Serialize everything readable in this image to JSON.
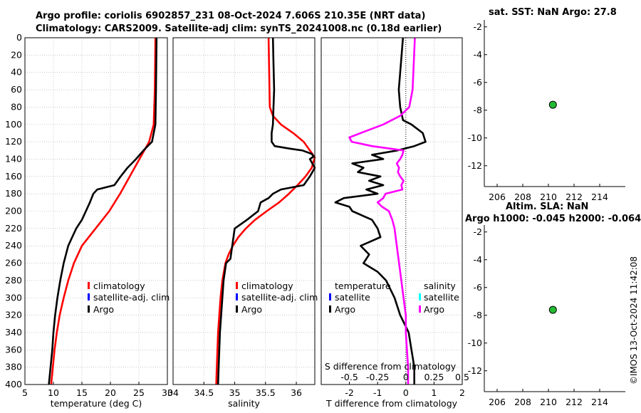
{
  "titles": {
    "line1": "Argo profile: coriolis 6902857_231 08-Oct-2024 7.606S 210.35E (NRT data)",
    "line2": "Climatology: CARS2009. Satellite-adj clim: synTS_20241008.nc (0.18d earlier)",
    "sst": "sat. SST: NaN Argo: 27.8",
    "sla1": "Altim. SLA: NaN",
    "sla2": "Argo h1000: -0.045 h2000: -0.064"
  },
  "watermark": "©IMOS 13-Oct-2024 11:42:08",
  "colors": {
    "climatology": "#ff0000",
    "satellite": "#0000ff",
    "argo": "#000000",
    "salinity_argo": "#ff00ff",
    "salinity_sat": "#00ffff",
    "marker": "#22bb33"
  },
  "chart_data": [
    {
      "type": "line",
      "id": "temperature",
      "xlabel": "temperature (deg C)",
      "ylabel": "",
      "xlim": [
        5,
        30
      ],
      "ylim": [
        400,
        0
      ],
      "xticks": [
        5,
        10,
        15,
        20,
        25,
        30
      ],
      "yticks": [
        0,
        20,
        40,
        60,
        80,
        100,
        120,
        140,
        160,
        180,
        200,
        220,
        240,
        260,
        280,
        300,
        320,
        340,
        360,
        380,
        400
      ],
      "legend": [
        "climatology",
        "satellite-adj. clim",
        "Argo"
      ],
      "series": [
        {
          "name": "climatology",
          "color": "#ff0000",
          "depth": [
            0,
            60,
            100,
            120,
            140,
            160,
            180,
            200,
            220,
            240,
            260,
            280,
            300,
            320,
            340,
            360,
            380,
            400
          ],
          "x": [
            27.9,
            27.8,
            27.6,
            26.8,
            25.1,
            23.4,
            21.7,
            19.8,
            17.4,
            15.0,
            13.6,
            12.6,
            11.8,
            11.1,
            10.6,
            10.2,
            9.9,
            9.6
          ]
        },
        {
          "name": "Argo",
          "color": "#000000",
          "depth": [
            0,
            60,
            100,
            120,
            130,
            140,
            150,
            160,
            170,
            175,
            180,
            190,
            200,
            210,
            220,
            230,
            240,
            250,
            260,
            280,
            300,
            320,
            340,
            360,
            380,
            400
          ],
          "x": [
            28.1,
            28.0,
            27.9,
            27.3,
            25.8,
            24.5,
            23.0,
            21.8,
            20.7,
            17.7,
            17.0,
            16.4,
            15.7,
            15.0,
            14.0,
            13.3,
            12.6,
            12.2,
            11.8,
            11.2,
            10.7,
            10.3,
            10.0,
            9.8,
            9.5,
            9.2
          ]
        }
      ]
    },
    {
      "type": "line",
      "id": "salinity",
      "xlabel": "salinity",
      "ylabel": "",
      "xlim": [
        34,
        36.3
      ],
      "ylim": [
        400,
        0
      ],
      "xticks": [
        34,
        34.5,
        35,
        35.5,
        36
      ],
      "legend": [
        "climatology",
        "satellite-adj. clim",
        "Argo"
      ],
      "series": [
        {
          "name": "climatology",
          "color": "#ff0000",
          "depth": [
            0,
            80,
            90,
            100,
            110,
            120,
            130,
            138,
            150,
            160,
            170,
            180,
            190,
            200,
            210,
            220,
            230,
            240,
            250,
            260,
            280,
            300,
            320,
            340,
            360,
            380,
            400
          ],
          "x": [
            35.55,
            35.57,
            35.62,
            35.75,
            35.95,
            36.12,
            36.22,
            36.3,
            36.25,
            36.15,
            36.02,
            35.88,
            35.72,
            35.52,
            35.33,
            35.18,
            35.06,
            34.97,
            34.9,
            34.85,
            34.8,
            34.77,
            34.75,
            34.73,
            34.72,
            34.71,
            34.7
          ]
        },
        {
          "name": "Argo",
          "color": "#000000",
          "depth": [
            0,
            30,
            60,
            80,
            100,
            110,
            120,
            125,
            128,
            130,
            134,
            137,
            140,
            145,
            150,
            160,
            170,
            175,
            180,
            185,
            190,
            200,
            210,
            220,
            240,
            255,
            260,
            280,
            300,
            320,
            340,
            360,
            380,
            400
          ],
          "x": [
            35.62,
            35.63,
            35.64,
            35.63,
            35.62,
            35.6,
            35.6,
            35.65,
            35.9,
            36.1,
            36.25,
            36.28,
            36.22,
            36.26,
            36.3,
            36.22,
            36.12,
            35.75,
            35.62,
            35.55,
            35.42,
            35.38,
            35.2,
            35.0,
            34.96,
            34.93,
            34.86,
            34.82,
            34.8,
            34.78,
            34.76,
            34.75,
            34.74,
            34.73
          ]
        }
      ]
    },
    {
      "type": "line",
      "id": "differences",
      "xlabel": "T difference from climatology",
      "xlabel_top": "S difference from climatology",
      "xlim": [
        -3,
        2
      ],
      "ylim": [
        400,
        0
      ],
      "xticks": [
        -2,
        -1,
        0,
        1,
        2
      ],
      "xticks_top": [
        -0.5,
        -0.25,
        0,
        0.25,
        0.5
      ],
      "xticklabels_top": [
        "-0.5",
        "-0.25",
        "0",
        "0.25",
        "0.5"
      ],
      "legend_temperature": {
        "heading": "temperature",
        "items": [
          "satellite",
          "Argo"
        ]
      },
      "legend_salinity": {
        "heading": "salinity",
        "items": [
          "satellite",
          "Argo"
        ]
      },
      "series": [
        {
          "name": "temperature Argo",
          "color": "#000000",
          "depth": [
            0,
            40,
            60,
            80,
            95,
            100,
            110,
            120,
            125,
            130,
            135,
            140,
            145,
            150,
            155,
            160,
            165,
            170,
            175,
            180,
            185,
            190,
            195,
            200,
            210,
            220,
            230,
            240,
            250,
            260,
            270,
            280,
            300,
            320,
            340,
            360,
            380,
            400
          ],
          "x": [
            -0.1,
            -0.2,
            -0.25,
            -0.2,
            -0.1,
            0.2,
            0.6,
            0.7,
            0.3,
            -0.3,
            -1.2,
            -0.8,
            -1.9,
            -1.5,
            -1.7,
            -0.9,
            -1.3,
            -0.8,
            -1.4,
            -1.0,
            -2.2,
            -2.5,
            -2.0,
            -1.9,
            -1.2,
            -1.0,
            -0.9,
            -1.6,
            -1.3,
            -1.5,
            -1.0,
            -0.7,
            -0.4,
            -0.2,
            0.1,
            0.2,
            0.3,
            0.3
          ]
        },
        {
          "name": "salinity Argo",
          "color": "#ff00ff",
          "depth": [
            0,
            30,
            60,
            80,
            90,
            100,
            110,
            115,
            120,
            125,
            130,
            135,
            140,
            145,
            150,
            155,
            160,
            165,
            170,
            175,
            180,
            185,
            190,
            195,
            200,
            210,
            220,
            240,
            260,
            280,
            300,
            320,
            340,
            360,
            380,
            400
          ],
          "x": [
            0.08,
            0.07,
            0.06,
            0.03,
            -0.05,
            -0.2,
            -0.4,
            -0.5,
            -0.48,
            -0.3,
            -0.02,
            -0.03,
            -0.05,
            -0.08,
            -0.06,
            -0.07,
            -0.05,
            -0.02,
            -0.04,
            -0.03,
            -0.18,
            -0.2,
            -0.25,
            -0.21,
            -0.15,
            -0.12,
            -0.1,
            -0.08,
            -0.06,
            -0.04,
            -0.02,
            0.0,
            0.0,
            0.01,
            0.02,
            0.02
          ]
        }
      ]
    },
    {
      "type": "scatter",
      "id": "sst-map",
      "xlim": [
        205,
        216
      ],
      "ylim": [
        -13.5,
        -1.5
      ],
      "xticks": [
        206,
        208,
        210,
        212,
        214
      ],
      "yticks": [
        -2,
        -4,
        -6,
        -8,
        -10,
        -12
      ],
      "points": [
        {
          "x": 210.35,
          "y": -7.606
        }
      ]
    },
    {
      "type": "scatter",
      "id": "sla-map",
      "xlim": [
        205,
        216
      ],
      "ylim": [
        -13.5,
        -1.5
      ],
      "xticks": [
        206,
        208,
        210,
        212,
        214
      ],
      "yticks": [
        -2,
        -4,
        -6,
        -8,
        -10,
        -12
      ],
      "points": [
        {
          "x": 210.35,
          "y": -7.606
        }
      ]
    }
  ]
}
